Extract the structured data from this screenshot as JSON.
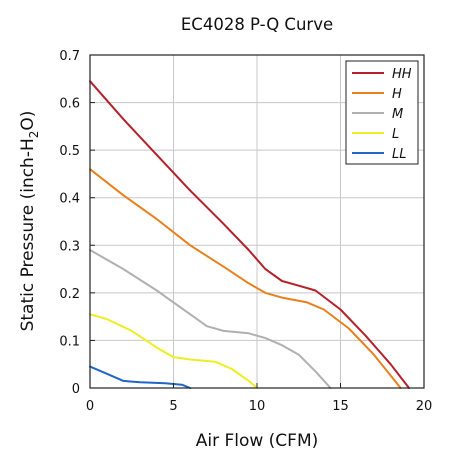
{
  "chart_data": {
    "type": "line",
    "title": "EC4028 P-Q Curve",
    "xlabel": "Air Flow (CFM)",
    "ylabel_parts": [
      "Static Pressure (inch-H",
      "2",
      "O)"
    ],
    "xlim": [
      0,
      20
    ],
    "ylim": [
      0,
      0.7
    ],
    "xticks": [
      0,
      5,
      10,
      15,
      20
    ],
    "yticks": [
      0,
      0.1,
      0.2,
      0.3,
      0.4,
      0.5,
      0.6,
      0.7
    ],
    "grid": true,
    "legend_position": "top-right",
    "series": [
      {
        "name": "HH",
        "color": "#b5202a",
        "x": [
          0,
          2,
          4,
          6,
          8,
          9.5,
          10.5,
          11.5,
          12.5,
          13.5,
          15,
          16.5,
          18,
          19.1
        ],
        "y": [
          0.645,
          0.565,
          0.49,
          0.415,
          0.345,
          0.29,
          0.25,
          0.225,
          0.215,
          0.205,
          0.165,
          0.11,
          0.05,
          0
        ]
      },
      {
        "name": "H",
        "color": "#e8801e",
        "x": [
          0,
          2,
          4,
          6,
          8,
          9.5,
          10.5,
          11.5,
          13,
          14,
          15.5,
          17,
          18.6
        ],
        "y": [
          0.46,
          0.405,
          0.355,
          0.3,
          0.255,
          0.22,
          0.2,
          0.19,
          0.18,
          0.165,
          0.125,
          0.07,
          0
        ]
      },
      {
        "name": "M",
        "color": "#b0b0b0",
        "x": [
          0,
          2,
          4,
          6,
          7,
          8,
          9.5,
          10.5,
          11.5,
          12.5,
          13.5,
          14.4
        ],
        "y": [
          0.29,
          0.25,
          0.205,
          0.155,
          0.13,
          0.12,
          0.115,
          0.105,
          0.09,
          0.07,
          0.035,
          0
        ]
      },
      {
        "name": "L",
        "color": "#eeee22",
        "x": [
          0,
          1,
          2.5,
          4,
          5,
          6,
          7.5,
          8.5,
          9.5,
          10
        ],
        "y": [
          0.155,
          0.145,
          0.12,
          0.085,
          0.065,
          0.06,
          0.055,
          0.04,
          0.015,
          0
        ]
      },
      {
        "name": "LL",
        "color": "#1f67c4",
        "x": [
          0,
          1,
          2,
          3,
          4.5,
          5.5,
          6
        ],
        "y": [
          0.045,
          0.03,
          0.015,
          0.012,
          0.01,
          0.007,
          0
        ]
      }
    ]
  }
}
